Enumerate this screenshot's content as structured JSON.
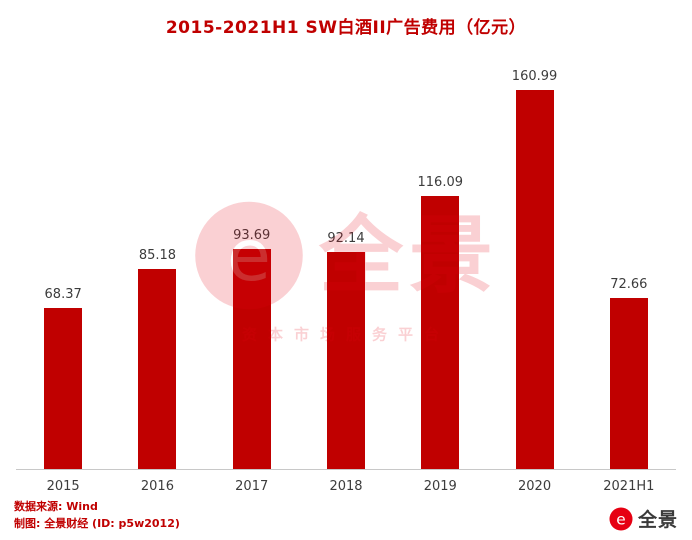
{
  "title": "2015-2021H1 SW白酒II广告费用（亿元）",
  "chart_data": {
    "type": "bar",
    "title": "2015-2021H1 SW白酒II广告费用（亿元）",
    "categories": [
      "2015",
      "2016",
      "2017",
      "2018",
      "2019",
      "2020",
      "2021H1"
    ],
    "values": [
      68.37,
      85.18,
      93.69,
      92.14,
      116.09,
      160.99,
      72.66
    ],
    "xlabel": "",
    "ylabel": "",
    "ylim": [
      0,
      170
    ],
    "grid": false,
    "legend": false,
    "value_labels": true,
    "bar_color": "#c00000"
  },
  "watermark": {
    "brand": "全景",
    "tagline": "资本市场服务平台",
    "logo": "panorama-swirl-icon"
  },
  "footer": {
    "source": "数据来源: Wind",
    "credit": "制图: 全景财经 (ID: p5w2012)",
    "logo_text": "全景",
    "logo": "panorama-swirl-icon"
  },
  "colors": {
    "bar": "#c00000",
    "title": "#c00000",
    "watermark": "#e60012",
    "axis_line": "#c8c8c8",
    "label_text": "#3c3c3c",
    "footer_text": "#c00000",
    "brand_text": "#3a3a3a"
  }
}
